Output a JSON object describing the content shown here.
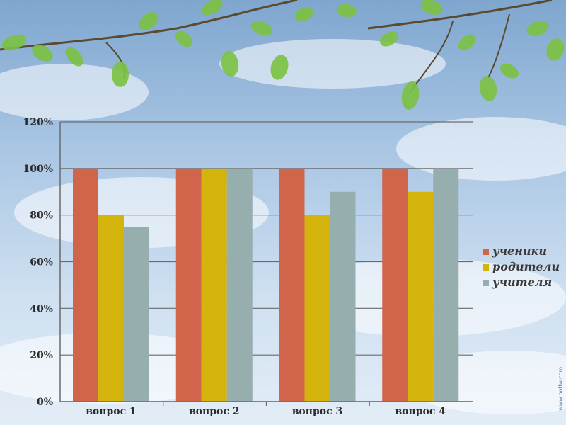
{
  "chart_data": {
    "type": "bar",
    "categories": [
      "вопрос 1",
      "вопрос 2",
      "вопрос 3",
      "вопрос 4"
    ],
    "series": [
      {
        "name": "ученики",
        "color": "#d0654c",
        "values": [
          100,
          100,
          100,
          100
        ]
      },
      {
        "name": "родители",
        "color": "#d4b30c",
        "values": [
          80,
          100,
          80,
          90
        ]
      },
      {
        "name": "учителя",
        "color": "#97aeae",
        "values": [
          75,
          100,
          90,
          100
        ]
      }
    ],
    "ylim": [
      0,
      120
    ],
    "yticks": [
      0,
      20,
      40,
      60,
      80,
      100,
      120
    ],
    "ytick_suffix": "%",
    "grid": true,
    "legend_position": "right"
  },
  "watermark": "www.hotlw.com"
}
